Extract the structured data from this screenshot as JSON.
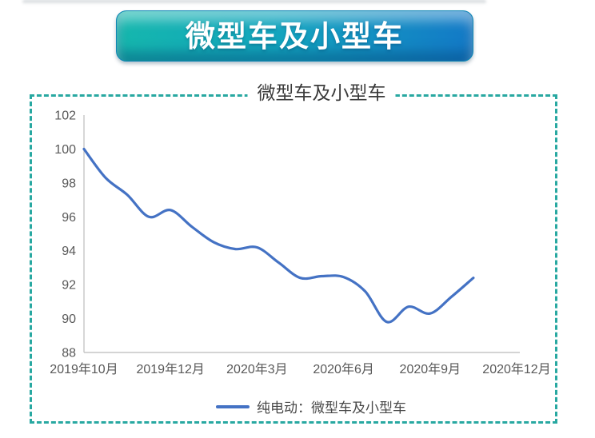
{
  "banner": {
    "title": "微型车及小型车"
  },
  "chart": {
    "title": "微型车及小型车",
    "legend": {
      "series_label": "纯电动：微型车及小型车"
    }
  },
  "colors": {
    "banner_gradient_left": "#15B7AD",
    "banner_gradient_right": "#1379C7",
    "frame_dash": "#28A8A1",
    "series_line": "#4472C4",
    "axis_line": "#C6C6C6",
    "tick_text": "#595959"
  },
  "chart_data": {
    "type": "line",
    "smoothed": true,
    "grid": false,
    "title": "微型车及小型车",
    "legend_position": "bottom",
    "ylim": [
      88,
      102
    ],
    "y_ticks": [
      102,
      100,
      98,
      96,
      94,
      92,
      90,
      88
    ],
    "x_tick_labels": [
      "2019年10月",
      "2019年12月",
      "2020年3月",
      "2020年6月",
      "2020年9月",
      "2020年12月"
    ],
    "x_axis_span_categories": 20,
    "x_tick_category_indices": [
      0,
      4,
      8,
      12,
      16,
      20
    ],
    "series": [
      {
        "name": "纯电动：微型车及小型车",
        "color": "#4472C4",
        "points": [
          [
            0,
            100.0
          ],
          [
            1,
            98.3
          ],
          [
            2,
            97.3
          ],
          [
            3,
            96.0
          ],
          [
            4,
            96.4
          ],
          [
            5,
            95.4
          ],
          [
            6,
            94.5
          ],
          [
            7,
            94.1
          ],
          [
            8,
            94.2
          ],
          [
            9,
            93.3
          ],
          [
            10,
            92.4
          ],
          [
            11,
            92.5
          ],
          [
            12,
            92.45
          ],
          [
            13,
            91.6
          ],
          [
            14,
            89.8
          ],
          [
            15,
            90.7
          ],
          [
            16,
            90.3
          ],
          [
            17,
            91.3
          ],
          [
            18,
            92.4
          ]
        ]
      }
    ]
  }
}
